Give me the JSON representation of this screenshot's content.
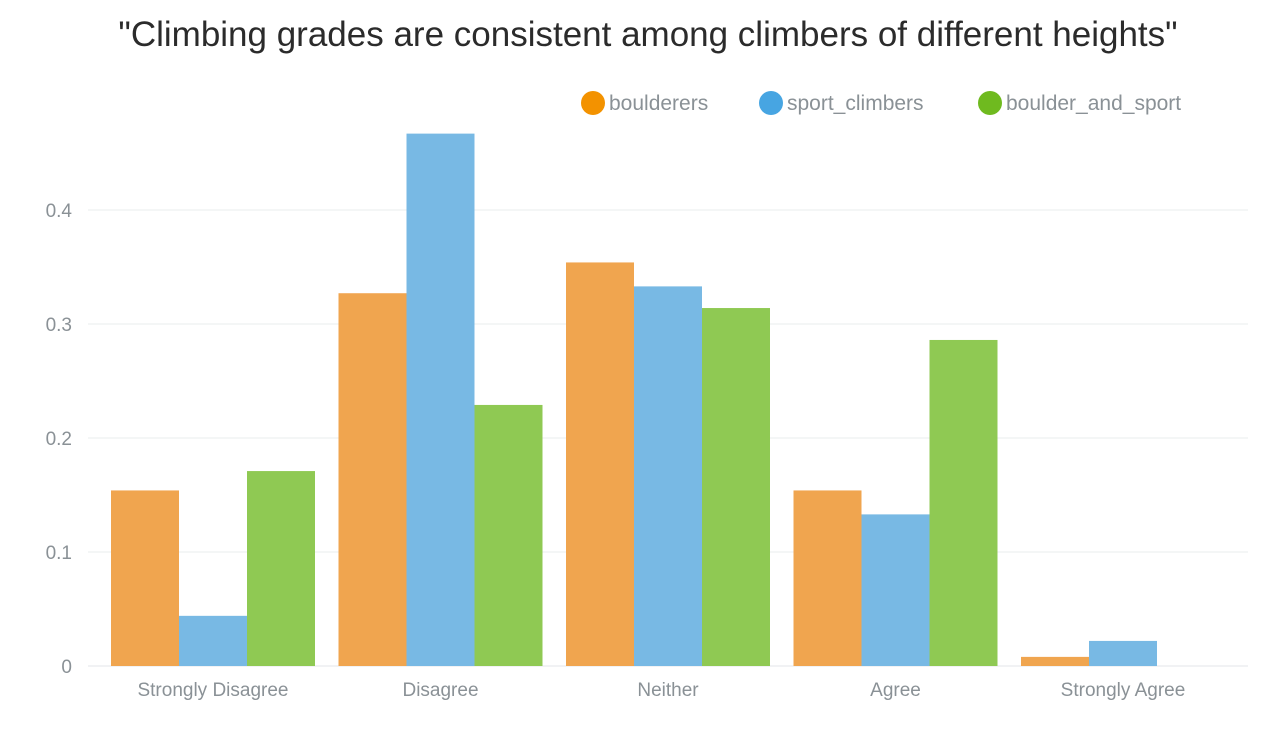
{
  "chart_data": {
    "type": "bar",
    "title": "\"Climbing grades are consistent among climbers of different heights\"",
    "xlabel": "",
    "ylabel": "",
    "categories": [
      "Strongly Disagree",
      "Disagree",
      "Neither",
      "Agree",
      "Strongly Agree"
    ],
    "series": [
      {
        "name": "boulderers",
        "color": "#f0a54f",
        "legend_color": "#f39200",
        "values": [
          0.154,
          0.327,
          0.354,
          0.154,
          0.008
        ]
      },
      {
        "name": "sport_climbers",
        "color": "#78b9e4",
        "legend_color": "#47a5e2",
        "values": [
          0.044,
          0.467,
          0.333,
          0.133,
          0.022
        ]
      },
      {
        "name": "boulder_and_sport",
        "color": "#8fc953",
        "legend_color": "#6fba1f",
        "values": [
          0.171,
          0.229,
          0.314,
          0.286,
          0.0
        ]
      }
    ],
    "ylim": [
      0,
      0.48
    ],
    "yticks": [
      0,
      0.1,
      0.2,
      0.3,
      0.4
    ],
    "ytick_labels": [
      "0",
      "0.1",
      "0.2",
      "0.3",
      "0.4"
    ],
    "grid": true,
    "legend_position": "top-right"
  }
}
